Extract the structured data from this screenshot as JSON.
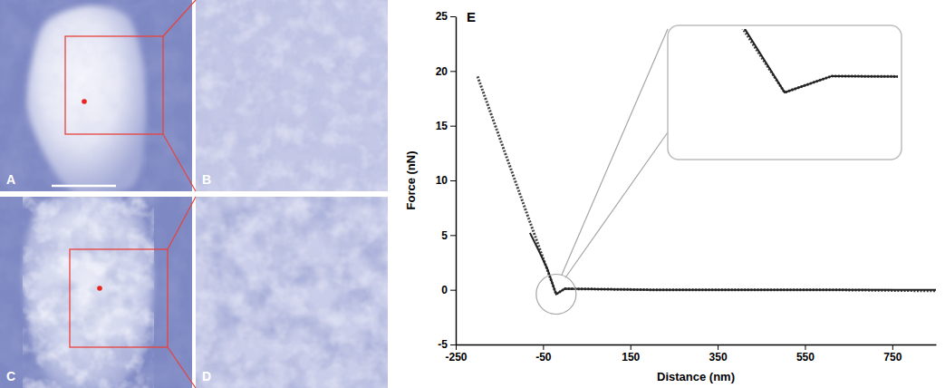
{
  "chart_data": {
    "type": "line",
    "title": "E",
    "xlabel": "Distance (nm)",
    "ylabel": "Force (nN)",
    "x": [
      -200,
      -80,
      -60,
      -40,
      -20,
      0,
      200,
      400,
      600,
      850
    ],
    "series": [
      {
        "color": "#444444",
        "line_style": "dotted",
        "values": [
          19.5,
          6.2,
          4.0,
          1.8,
          -0.4,
          0.1,
          0,
          0,
          0,
          -0.1
        ]
      },
      {
        "color": "#222222",
        "line_style": "solid",
        "values": [
          null,
          5.2,
          3.6,
          1.9,
          -0.4,
          0.1,
          0,
          0,
          0,
          0
        ]
      }
    ],
    "xlim": [
      -250,
      850
    ],
    "xticks": [
      -250,
      -50,
      150,
      350,
      550,
      750
    ],
    "ylim": [
      -5,
      25
    ],
    "yticks": [
      -5,
      0,
      5,
      10,
      15,
      20,
      25
    ],
    "grid": false
  },
  "images": {
    "labels": [
      "A",
      "B",
      "C",
      "D"
    ]
  }
}
